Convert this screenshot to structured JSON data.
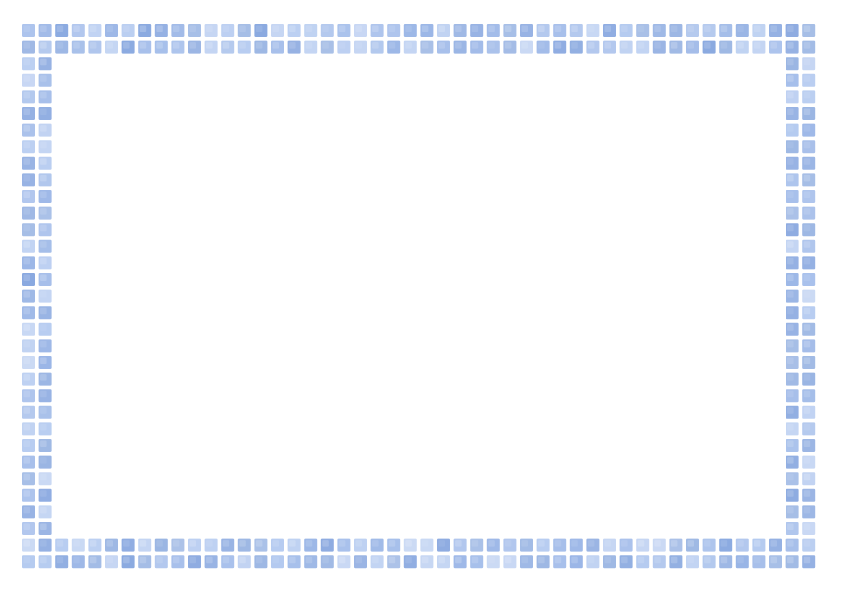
{
  "frame": {
    "style": "watercolor-tile-border",
    "tile_colors": [
      "#8aa9e0",
      "#98b4e6",
      "#a6bfeb",
      "#b4caf0",
      "#9ab5e3",
      "#c0d2f2"
    ],
    "background_color": "#ffffff"
  },
  "content": {
    "text": ""
  }
}
